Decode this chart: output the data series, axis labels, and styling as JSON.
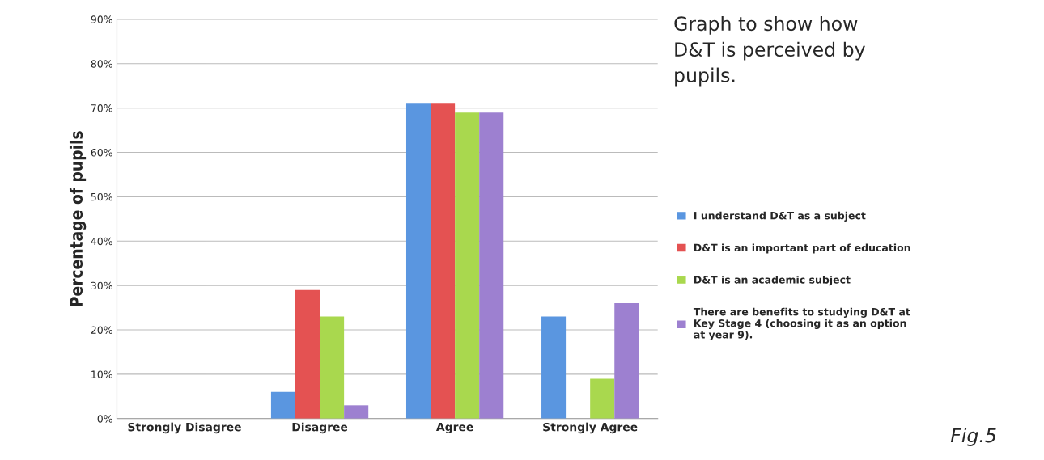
{
  "chart_data": {
    "type": "bar",
    "title": "Graph to show how D&T is perceived by pupils.",
    "ylabel": "Percentage of pupils",
    "categories": [
      "Strongly Disagree",
      "Disagree",
      "Agree",
      "Strongly Agree"
    ],
    "series": [
      {
        "name": "I understand D&T as a subject",
        "color": "#5a96e0",
        "values": [
          0,
          6,
          71,
          23
        ]
      },
      {
        "name": "D&T is an important part of education",
        "color": "#e45252",
        "values": [
          0,
          29,
          71,
          0
        ]
      },
      {
        "name": "D&T is an academic subject",
        "color": "#a9d84e",
        "values": [
          0,
          23,
          69,
          9
        ]
      },
      {
        "name": "There are benefits to studying D&T at Key Stage 4 (choosing it as an option at year 9).",
        "color": "#9d80d0",
        "values": [
          0,
          3,
          69,
          26
        ]
      }
    ],
    "ylim": [
      0,
      90
    ],
    "yticks": [
      {
        "value": 0,
        "label": "0%"
      },
      {
        "value": 10,
        "label": "10%"
      },
      {
        "value": 20,
        "label": "20%"
      },
      {
        "value": 30,
        "label": "30%"
      },
      {
        "value": 40,
        "label": "40%"
      },
      {
        "value": 50,
        "label": "50%"
      },
      {
        "value": 60,
        "label": "60%"
      },
      {
        "value": 70,
        "label": "70%"
      },
      {
        "value": 80,
        "label": "80%"
      },
      {
        "value": 90,
        "label": "90%"
      }
    ],
    "grid": "y",
    "legend": "right",
    "annotations": [
      "Fig.5"
    ]
  }
}
